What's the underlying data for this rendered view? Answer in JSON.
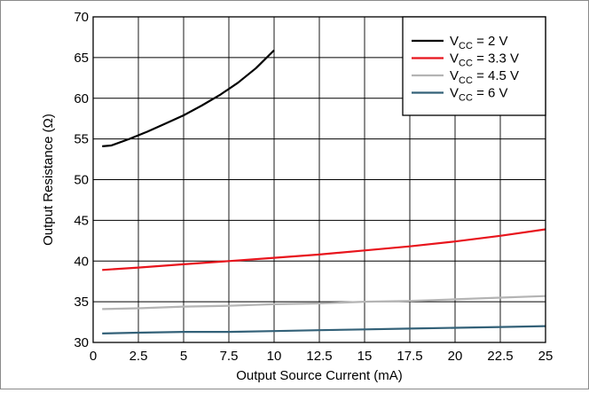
{
  "chart_data": {
    "type": "line",
    "title": "",
    "xlabel": "Output Source Current (mA)",
    "ylabel": "Output Resistance (Ω)",
    "xlim": [
      0,
      25
    ],
    "ylim": [
      30,
      70
    ],
    "xticks": [
      0,
      2.5,
      5,
      7.5,
      10,
      12.5,
      15,
      17.5,
      20,
      22.5,
      25
    ],
    "xtick_labels": [
      "0",
      "2.5",
      "5",
      "7.5",
      "10",
      "12.5",
      "15",
      "17.5",
      "20",
      "22.5",
      "25"
    ],
    "yticks": [
      30,
      35,
      40,
      45,
      50,
      55,
      60,
      65,
      70
    ],
    "ytick_labels": [
      "30",
      "35",
      "40",
      "45",
      "50",
      "55",
      "60",
      "65",
      "70"
    ],
    "grid": true,
    "legend_position": "top-right",
    "series": [
      {
        "name": "V_CC = 2 V",
        "legend": {
          "base": "V",
          "sub": "CC",
          "rest": " = 2 V"
        },
        "color": "#000000",
        "x": [
          0.5,
          1,
          2,
          3,
          4,
          5,
          6,
          7,
          8,
          9,
          10
        ],
        "y": [
          54.1,
          54.2,
          55.0,
          55.9,
          56.9,
          57.9,
          59.1,
          60.4,
          61.9,
          63.7,
          65.9
        ]
      },
      {
        "name": "V_CC = 3.3 V",
        "legend": {
          "base": "V",
          "sub": "CC",
          "rest": " = 3.3 V"
        },
        "color": "#e8141c",
        "x": [
          0.5,
          2.5,
          5,
          7.5,
          10,
          12.5,
          15,
          17.5,
          20,
          22.5,
          25
        ],
        "y": [
          38.9,
          39.2,
          39.6,
          40.0,
          40.4,
          40.8,
          41.3,
          41.8,
          42.4,
          43.1,
          43.9
        ]
      },
      {
        "name": "V_CC = 4.5 V",
        "legend": {
          "base": "V",
          "sub": "CC",
          "rest": " = 4.5 V"
        },
        "color": "#b4b4b4",
        "x": [
          0.5,
          2.5,
          5,
          7.5,
          10,
          12.5,
          15,
          17.5,
          20,
          22.5,
          25
        ],
        "y": [
          34.1,
          34.2,
          34.4,
          34.5,
          34.7,
          34.8,
          35.0,
          35.1,
          35.3,
          35.5,
          35.7
        ]
      },
      {
        "name": "V_CC = 6 V",
        "legend": {
          "base": "V",
          "sub": "CC",
          "rest": " = 6 V"
        },
        "color": "#336178",
        "x": [
          0.5,
          2.5,
          5,
          7.5,
          10,
          12.5,
          15,
          17.5,
          20,
          22.5,
          25
        ],
        "y": [
          31.1,
          31.2,
          31.3,
          31.3,
          31.4,
          31.5,
          31.6,
          31.7,
          31.8,
          31.9,
          32.0
        ]
      }
    ]
  }
}
